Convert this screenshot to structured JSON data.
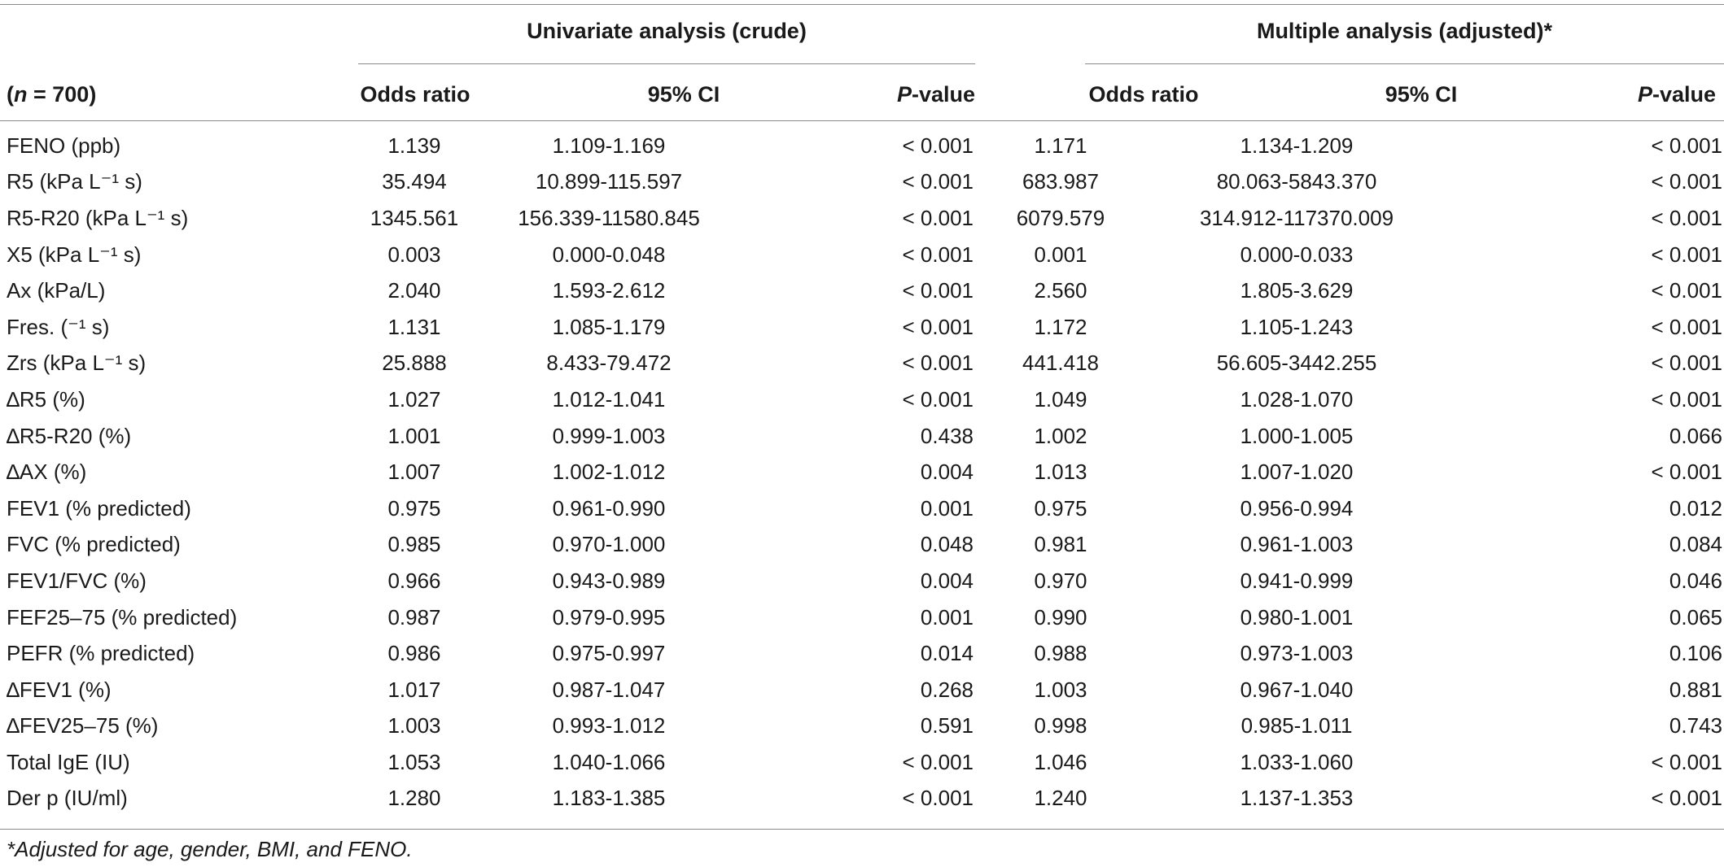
{
  "header": {
    "group1_title": "Univariate analysis (crude)",
    "group2_title": "Multiple analysis (adjusted)*",
    "n_label_prefix": "(",
    "n_label_var": "n",
    "n_label_suffix": " = 700)",
    "odds_ratio_label": "Odds ratio",
    "ci_label": "95% CI",
    "p_label_var": "P",
    "p_label_suffix": "-value"
  },
  "rows": [
    [
      "FENO (ppb)",
      "1.139",
      "1.109-1.169",
      "< 0.001",
      "1.171",
      "1.134-1.209",
      "< 0.001"
    ],
    [
      "R5 (kPa L⁻¹ s)",
      "35.494",
      "10.899-115.597",
      "< 0.001",
      "683.987",
      "80.063-5843.370",
      "< 0.001"
    ],
    [
      "R5-R20 (kPa L⁻¹ s)",
      "1345.561",
      "156.339-11580.845",
      "< 0.001",
      "6079.579",
      "314.912-117370.009",
      "< 0.001"
    ],
    [
      "X5 (kPa L⁻¹ s)",
      "0.003",
      "0.000-0.048",
      "< 0.001",
      "0.001",
      "0.000-0.033",
      "< 0.001"
    ],
    [
      "Ax (kPa/L)",
      "2.040",
      "1.593-2.612",
      "< 0.001",
      "2.560",
      "1.805-3.629",
      "< 0.001"
    ],
    [
      "Fres. (⁻¹ s)",
      "1.131",
      "1.085-1.179",
      "< 0.001",
      "1.172",
      "1.105-1.243",
      "< 0.001"
    ],
    [
      "Zrs (kPa L⁻¹ s)",
      "25.888",
      "8.433-79.472",
      "< 0.001",
      "441.418",
      "56.605-3442.255",
      "< 0.001"
    ],
    [
      "∆R5 (%)",
      "1.027",
      "1.012-1.041",
      "< 0.001",
      "1.049",
      "1.028-1.070",
      "< 0.001"
    ],
    [
      "∆R5-R20 (%)",
      "1.001",
      "0.999-1.003",
      "0.438",
      "1.002",
      "1.000-1.005",
      "0.066"
    ],
    [
      "∆AX (%)",
      "1.007",
      "1.002-1.012",
      "0.004",
      "1.013",
      "1.007-1.020",
      "< 0.001"
    ],
    [
      "FEV1 (% predicted)",
      "0.975",
      "0.961-0.990",
      "0.001",
      "0.975",
      "0.956-0.994",
      "0.012"
    ],
    [
      "FVC (% predicted)",
      "0.985",
      "0.970-1.000",
      "0.048",
      "0.981",
      "0.961-1.003",
      "0.084"
    ],
    [
      "FEV1/FVC (%)",
      "0.966",
      "0.943-0.989",
      "0.004",
      "0.970",
      "0.941-0.999",
      "0.046"
    ],
    [
      "FEF25–75 (% predicted)",
      "0.987",
      "0.979-0.995",
      "0.001",
      "0.990",
      "0.980-1.001",
      "0.065"
    ],
    [
      "PEFR (% predicted)",
      "0.986",
      "0.975-0.997",
      "0.014",
      "0.988",
      "0.973-1.003",
      "0.106"
    ],
    [
      "∆FEV1 (%)",
      "1.017",
      "0.987-1.047",
      "0.268",
      "1.003",
      "0.967-1.040",
      "0.881"
    ],
    [
      "∆FEV25–75 (%)",
      "1.003",
      "0.993-1.012",
      "0.591",
      "0.998",
      "0.985-1.011",
      "0.743"
    ],
    [
      "Total IgE (IU)",
      "1.053",
      "1.040-1.066",
      "< 0.001",
      "1.046",
      "1.033-1.060",
      "< 0.001"
    ],
    [
      "Der p (IU/ml)",
      "1.280",
      "1.183-1.385",
      "< 0.001",
      "1.240",
      "1.137-1.353",
      "< 0.001"
    ]
  ],
  "footnote": "*Adjusted for age, gender, BMI, and FENO."
}
